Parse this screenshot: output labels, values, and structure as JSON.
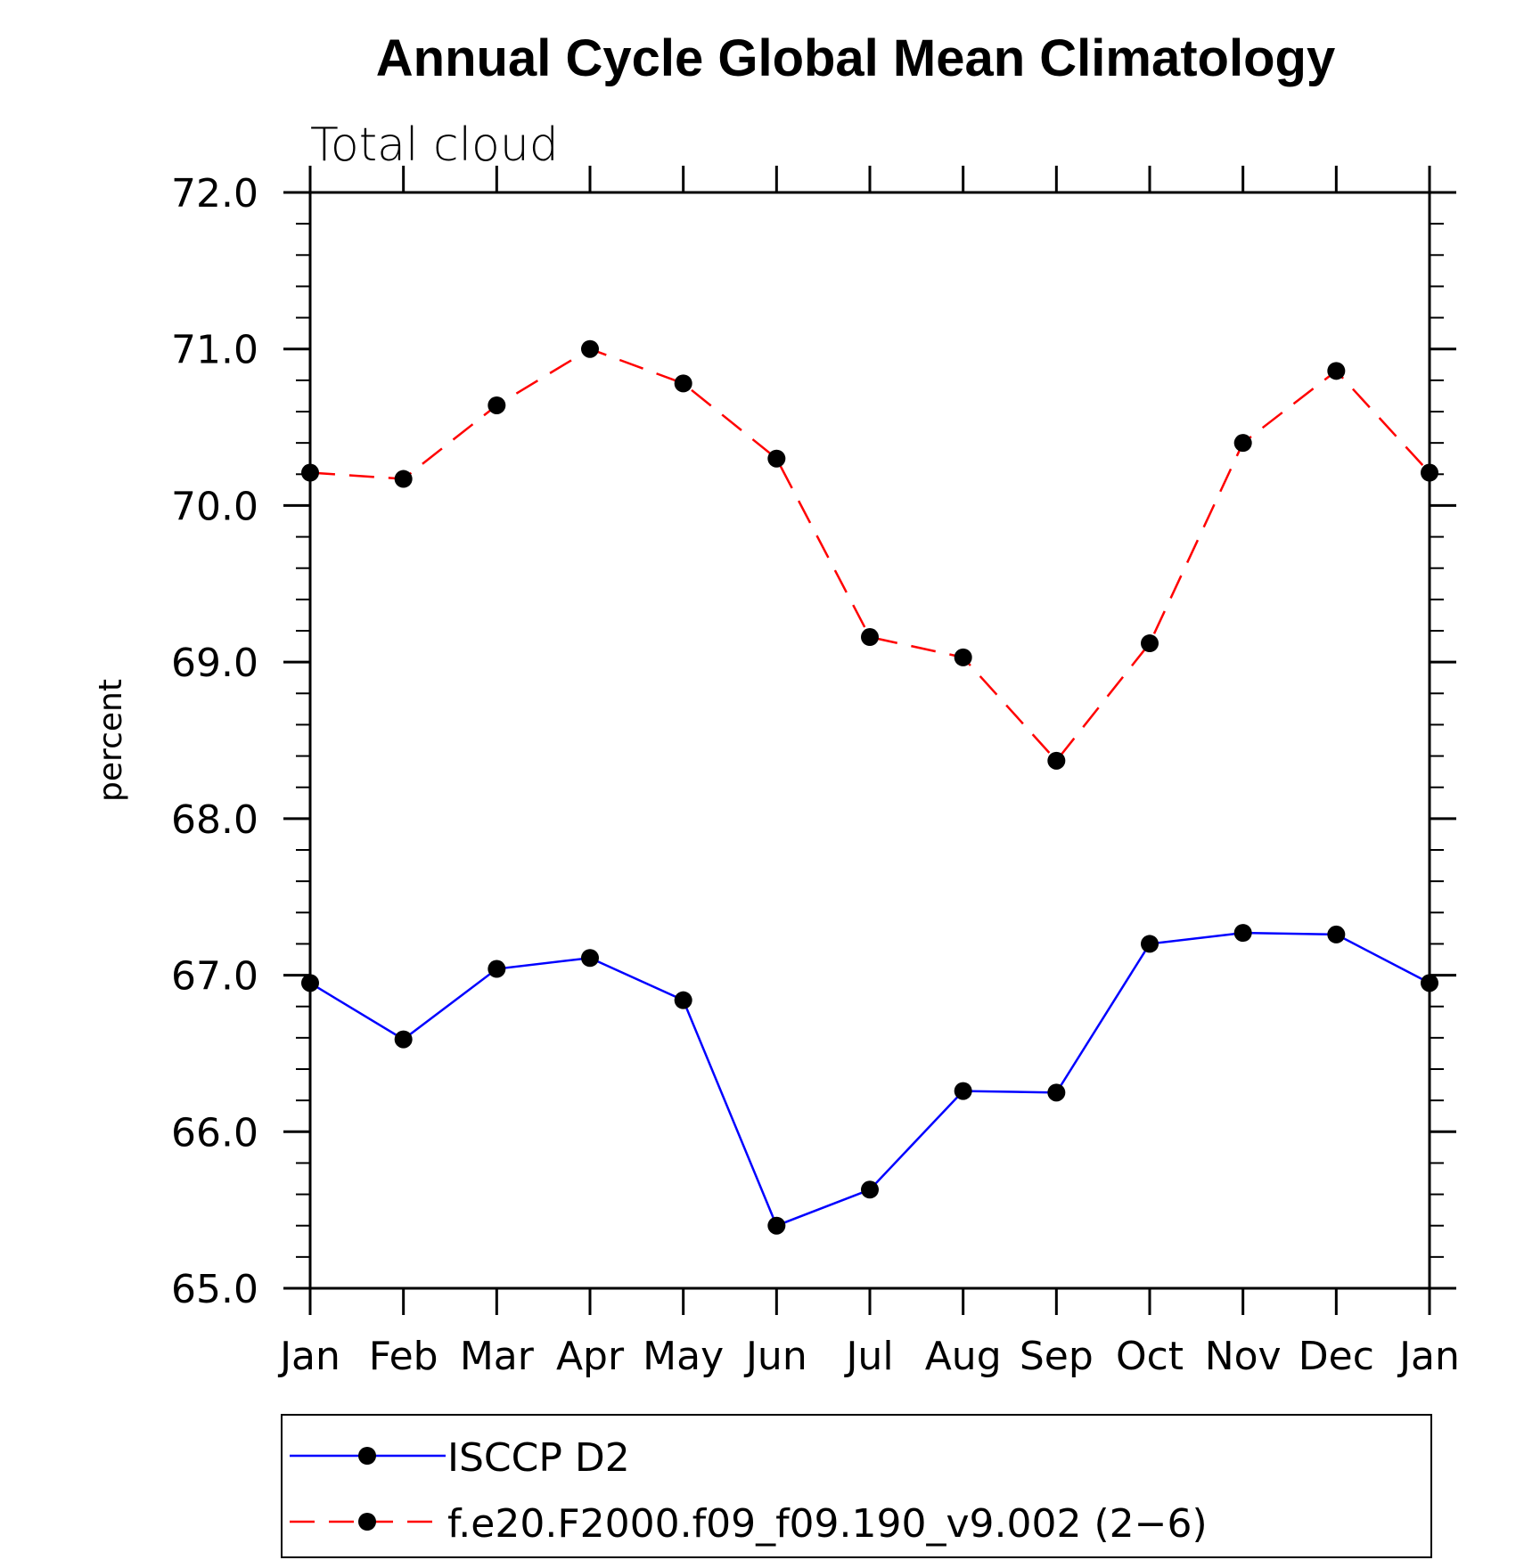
{
  "chart_data": {
    "type": "line",
    "title": "Annual Cycle Global Mean Climatology",
    "subtitle": "Total cloud",
    "xlabel": "",
    "ylabel": "percent",
    "categories": [
      "Jan",
      "Feb",
      "Mar",
      "Apr",
      "May",
      "Jun",
      "Jul",
      "Aug",
      "Sep",
      "Oct",
      "Nov",
      "Dec",
      "Jan"
    ],
    "ylim": [
      65.0,
      72.0
    ],
    "yticks": [
      65.0,
      66.0,
      67.0,
      68.0,
      69.0,
      70.0,
      71.0,
      72.0
    ],
    "ytick_labels": [
      "65.0",
      "66.0",
      "67.0",
      "68.0",
      "69.0",
      "70.0",
      "71.0",
      "72.0"
    ],
    "grid": false,
    "legend_position": "bottom",
    "series": [
      {
        "name": "ISCCP D2",
        "color": "#0000ff",
        "line_style": "solid",
        "marker": "filled-circle",
        "values": [
          66.95,
          66.59,
          67.04,
          67.11,
          66.84,
          65.4,
          65.63,
          66.26,
          66.25,
          67.2,
          67.27,
          67.26,
          66.95
        ]
      },
      {
        "name": "f.e20.F2000.f09_f09.190_v9.002 (2−6)",
        "color": "#ff0000",
        "line_style": "dashed",
        "marker": "filled-circle",
        "values": [
          70.21,
          70.17,
          70.64,
          71.0,
          70.78,
          70.3,
          69.16,
          69.03,
          68.37,
          69.12,
          70.4,
          70.86,
          70.21
        ]
      }
    ]
  }
}
